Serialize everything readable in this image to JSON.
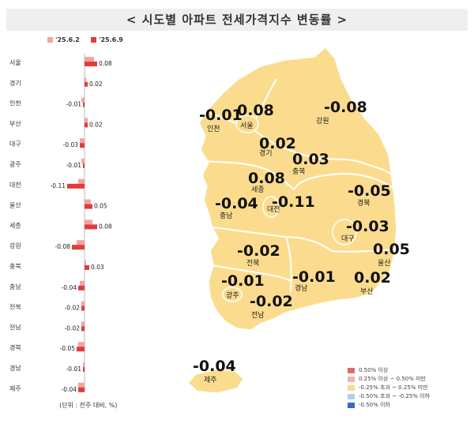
{
  "title": "< 시도별 아파트 전세가격지수 변동률 >",
  "chart_data": {
    "type": "bar",
    "orientation": "horizontal",
    "categories": [
      "서울",
      "경기",
      "인천",
      "부산",
      "대구",
      "광주",
      "대전",
      "울산",
      "세종",
      "강원",
      "충북",
      "충남",
      "전북",
      "전남",
      "경북",
      "경남",
      "제주"
    ],
    "series": [
      {
        "name": "'25.6.2",
        "color": "#f4a3a3",
        "values": [
          0.06,
          0.01,
          -0.02,
          0.02,
          -0.03,
          -0.02,
          -0.04,
          0.04,
          0.05,
          -0.05,
          0.01,
          -0.03,
          -0.02,
          -0.02,
          -0.04,
          -0.01,
          -0.04
        ]
      },
      {
        "name": "'25.6.9",
        "color": "#e03c3c",
        "values": [
          0.08,
          0.02,
          -0.01,
          0.02,
          -0.03,
          -0.01,
          -0.11,
          0.05,
          0.08,
          -0.08,
          0.03,
          -0.04,
          -0.02,
          -0.02,
          -0.05,
          -0.01,
          -0.04
        ]
      }
    ],
    "data_labels": [
      "0.08",
      "0.02",
      "-0.01",
      "0.02",
      "-0.03",
      "-0.01",
      "-0.11",
      "0.05",
      "0.08",
      "-0.08",
      "0.03",
      "-0.04",
      "-0.02",
      "-0.02",
      "-0.05",
      "-0.01",
      "-0.04"
    ],
    "unit_note": "(단위 : 전주 대비, %)"
  },
  "map": {
    "regions": [
      {
        "name": "인천",
        "value": "-0.01"
      },
      {
        "name": "서울",
        "value": "0.08"
      },
      {
        "name": "경기",
        "value": "0.02"
      },
      {
        "name": "강원",
        "value": "-0.08"
      },
      {
        "name": "충북",
        "value": "0.03"
      },
      {
        "name": "세종",
        "value": "0.08"
      },
      {
        "name": "대전",
        "value": "-0.11"
      },
      {
        "name": "충남",
        "value": "-0.04"
      },
      {
        "name": "경북",
        "value": "-0.05"
      },
      {
        "name": "대구",
        "value": "-0.03"
      },
      {
        "name": "울산",
        "value": "0.05"
      },
      {
        "name": "전북",
        "value": "-0.02"
      },
      {
        "name": "광주",
        "value": "-0.01"
      },
      {
        "name": "전남",
        "value": "-0.02"
      },
      {
        "name": "경남",
        "value": "-0.01"
      },
      {
        "name": "부산",
        "value": "0.02"
      },
      {
        "name": "제주",
        "value": "-0.04"
      }
    ],
    "land_color": "#fbdc8e",
    "legend": [
      {
        "label": "0.50% 이상",
        "color": "#e06b6b"
      },
      {
        "label": "0.25% 이상 ~ 0.50% 미만",
        "color": "#f6b1b1"
      },
      {
        "label": "-0.25% 초과 ~ 0.25% 미만",
        "color": "#fbdc8e"
      },
      {
        "label": "-0.50% 초과 ~ -0.25% 이하",
        "color": "#b8cdee"
      },
      {
        "label": "-0.50% 이하",
        "color": "#3f66c7"
      }
    ]
  }
}
